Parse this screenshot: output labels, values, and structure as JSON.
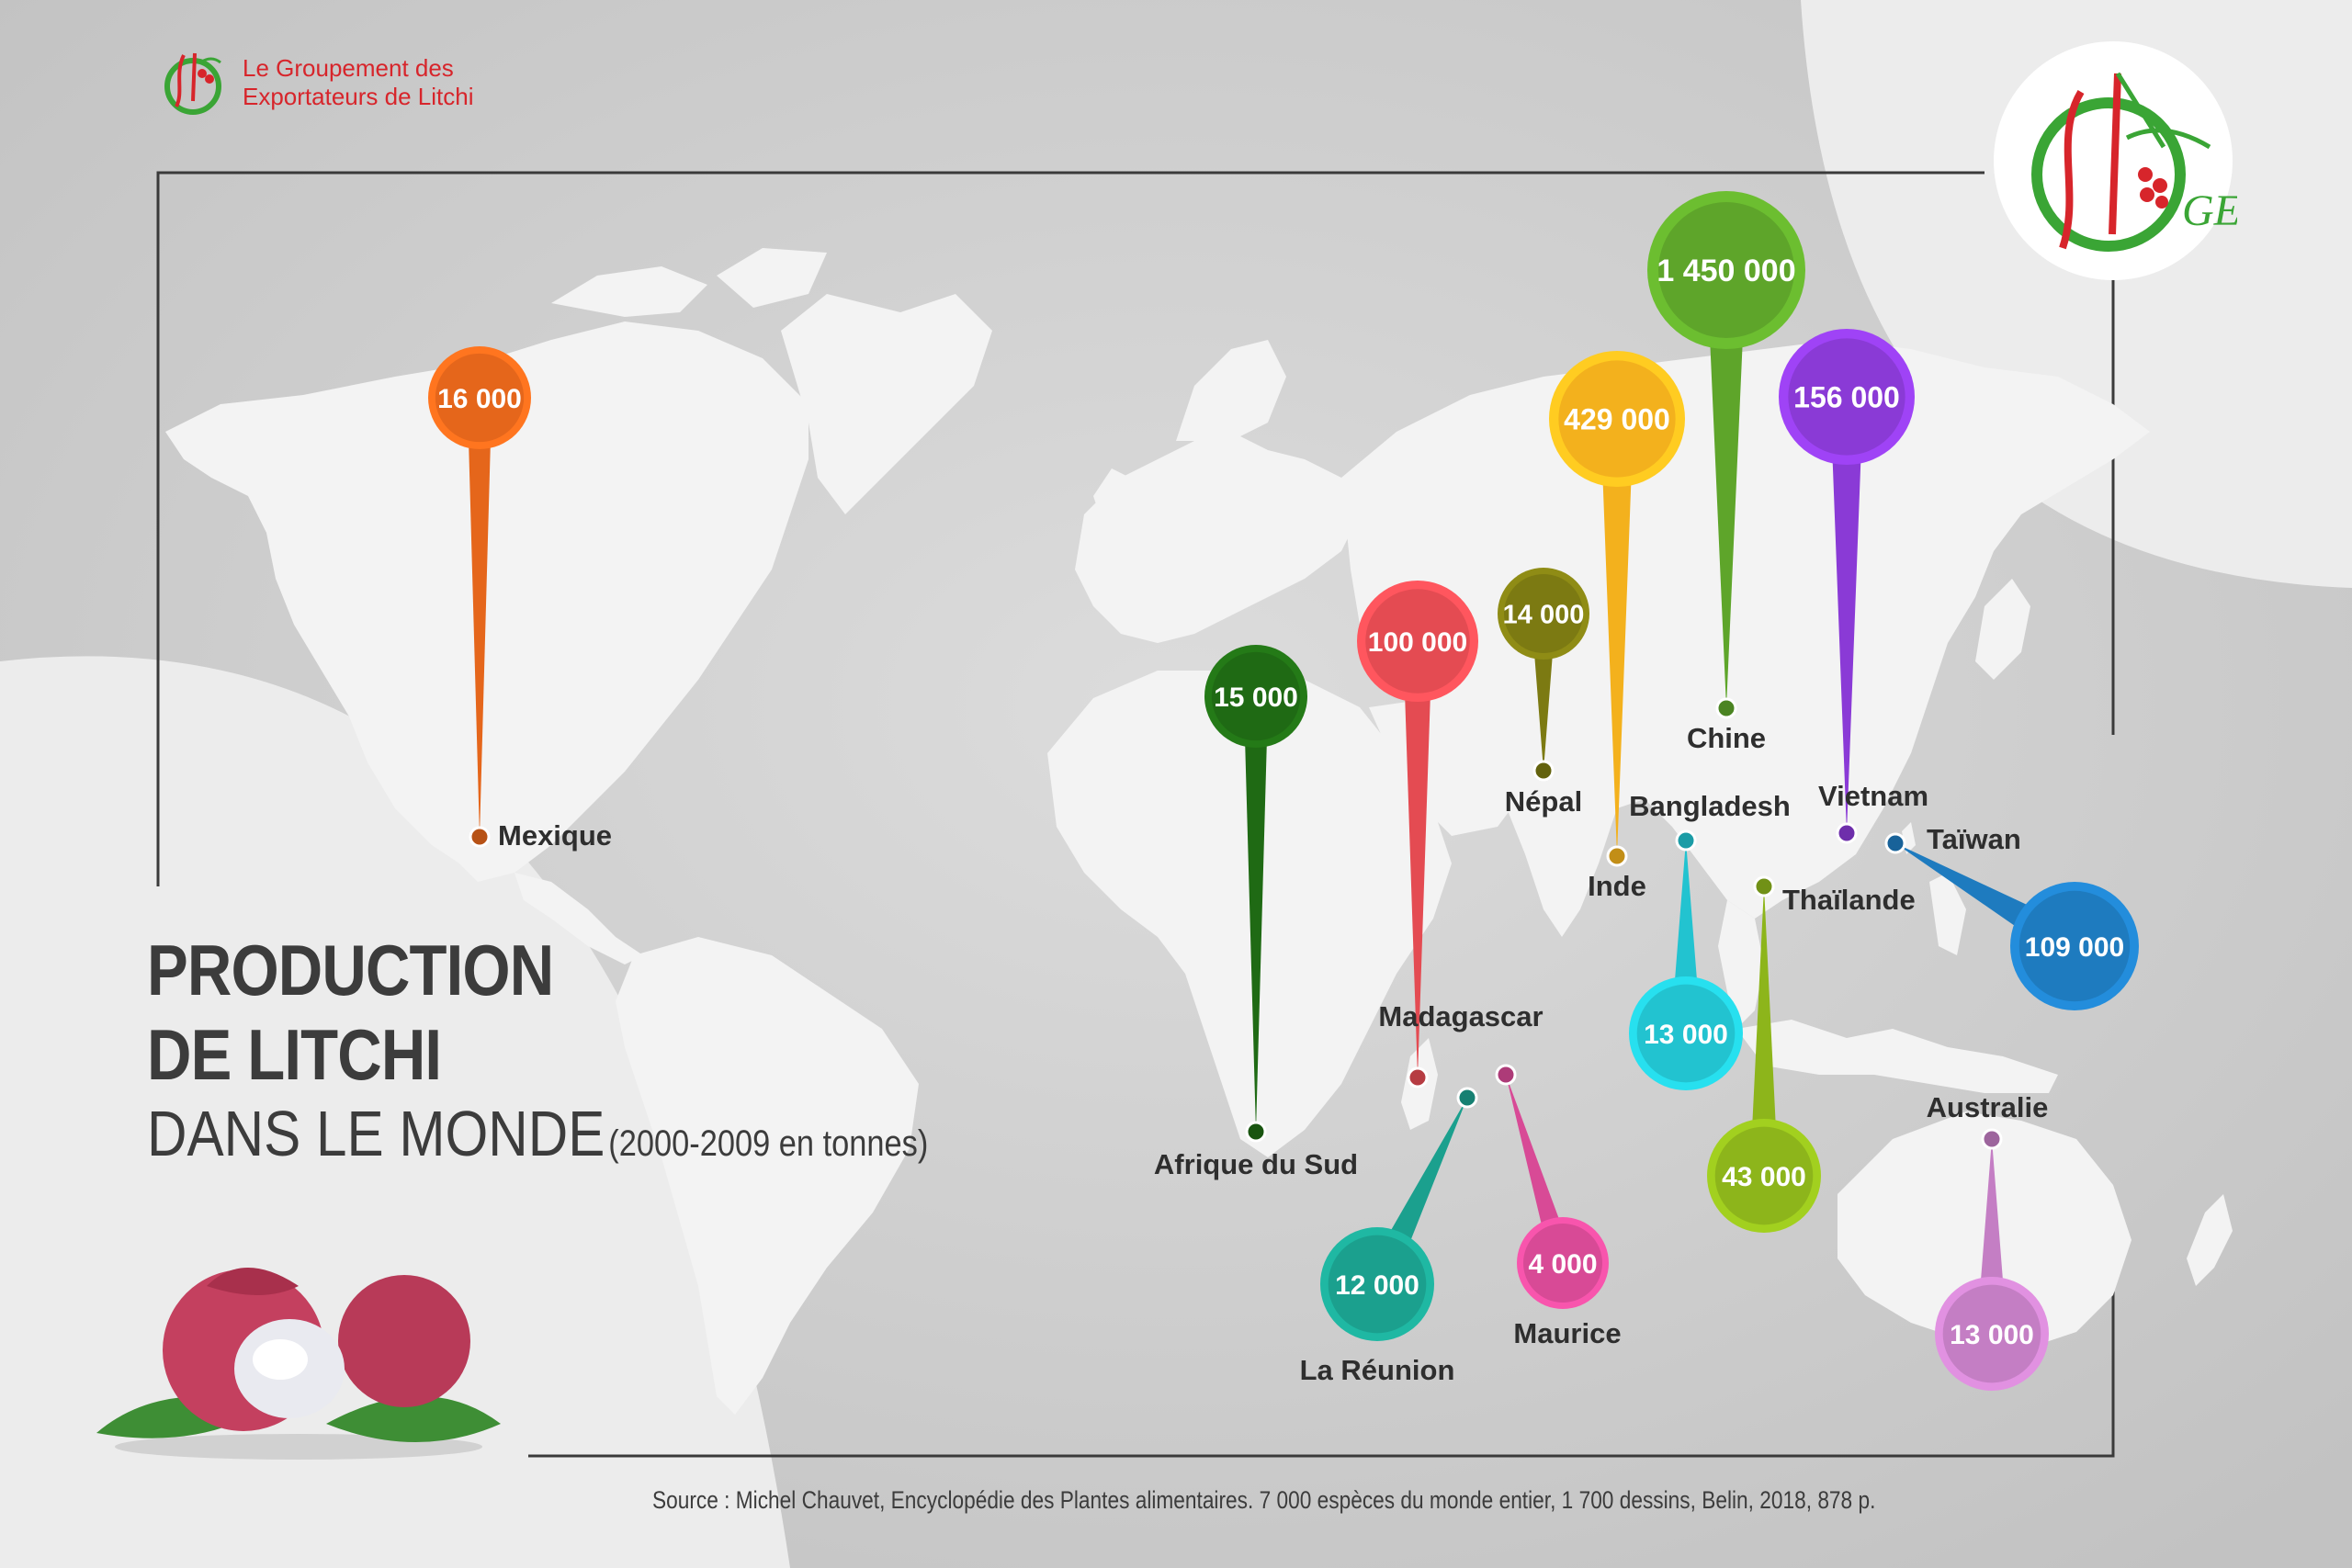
{
  "brand": {
    "line1": "Le Groupement des",
    "line2": "Exportateurs de Litchi",
    "logo_letters": "GEL",
    "colors": {
      "red": "#d7252b",
      "green": "#3aa535"
    }
  },
  "title": {
    "line1": "PRODUCTION",
    "line2": "DE LITCHI",
    "line3": "DANS LE MONDE",
    "line3_suffix": "(2000-2009 en tonnes)"
  },
  "source": "Source : Michel Chauvet, Encyclopédie des Plantes alimentaires. 7 000 espèces du monde entier, 1 700 dessins, Belin, 2018, 878 p.",
  "map": {
    "unit": "tonnes",
    "background_color": "#d6d6d6",
    "land_color": "#f2f2f2",
    "countries": [
      {
        "name": "Mexique",
        "value": "16 000",
        "color": "#e5661b",
        "lon": -102,
        "lat": 23
      },
      {
        "name": "Afrique du Sud",
        "value": "15 000",
        "color": "#1f6a14",
        "lon": 25,
        "lat": -29
      },
      {
        "name": "Madagascar",
        "value": "100 000",
        "color": "#e44b52",
        "lon": 47,
        "lat": -19
      },
      {
        "name": "Népal",
        "value": "14 000",
        "color": "#7c7a12",
        "lon": 84,
        "lat": 28
      },
      {
        "name": "Inde",
        "value": "429 000",
        "color": "#f3b11d",
        "lon": 79,
        "lat": 22
      },
      {
        "name": "Chine",
        "value": "1 450 000",
        "color": "#5ea52a",
        "lon": 104,
        "lat": 35
      },
      {
        "name": "Vietnam",
        "value": "156 000",
        "color": "#8a3ad6",
        "lon": 106,
        "lat": 16
      },
      {
        "name": "Bangladesh",
        "value": "13 000",
        "color": "#22c3d0",
        "lon": 90,
        "lat": 24
      },
      {
        "name": "Thaïlande",
        "value": "43 000",
        "color": "#8db51b",
        "lon": 101,
        "lat": 15
      },
      {
        "name": "Taïwan",
        "value": "109 000",
        "color": "#1e7bbf",
        "lon": 121,
        "lat": 23.7
      },
      {
        "name": "La Réunion",
        "value": "12 000",
        "color": "#1ba08e",
        "lon": 55.5,
        "lat": -21
      },
      {
        "name": "Maurice",
        "value": "4 000",
        "color": "#d84a96",
        "lon": 57.5,
        "lat": -20.3
      },
      {
        "name": "Australie",
        "value": "13 000",
        "color": "#c47ec4",
        "lon": 134,
        "lat": -25
      }
    ]
  }
}
